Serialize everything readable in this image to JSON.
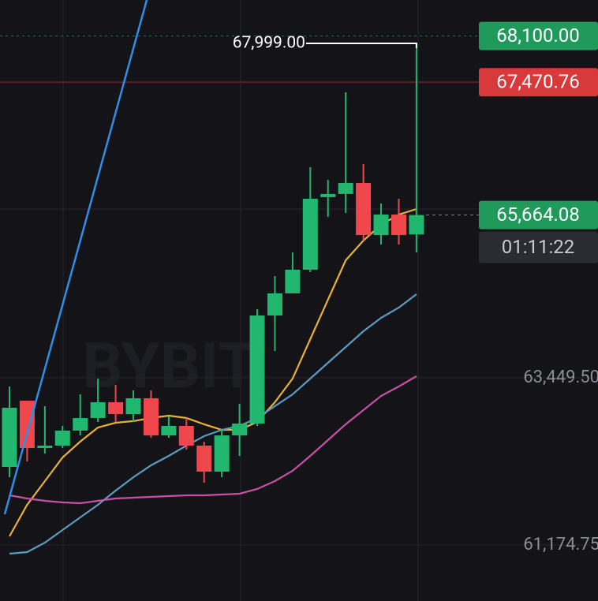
{
  "chart_data": {
    "type": "candlestick",
    "watermark": "BYBIT",
    "open": [
      62237,
      63138,
      62494,
      62527,
      62731,
      62902,
      63117,
      62956,
      63171,
      62666,
      62795,
      62527,
      62173,
      62666,
      62827,
      64297,
      64598,
      64920,
      65907,
      65950,
      66100,
      65391,
      65670,
      65400
    ],
    "high": [
      63331,
      63138,
      63063,
      62795,
      63224,
      63439,
      63353,
      63278,
      63278,
      62924,
      62902,
      62580,
      62741,
      63095,
      64383,
      64834,
      65155,
      66314,
      66143,
      67334,
      66357,
      65821,
      65885,
      67999
    ],
    "low": [
      62097,
      62312,
      62419,
      62494,
      62666,
      62849,
      62849,
      62849,
      62634,
      62634,
      62473,
      62022,
      62097,
      62387,
      62795,
      63814,
      64619,
      64887,
      65638,
      65692,
      65316,
      65262,
      65262,
      65155
    ],
    "close": [
      63042,
      62494,
      62527,
      62731,
      62902,
      63117,
      62956,
      63171,
      62666,
      62795,
      62527,
      62173,
      62666,
      62827,
      64297,
      64598,
      64920,
      65885,
      65950,
      66100,
      65391,
      65670,
      65391,
      65664.08
    ],
    "up_color": "#22b76f",
    "down_color": "#f0474c",
    "series": [
      {
        "color": "#e8b234",
        "values": [
          61293,
          61722,
          62044,
          62366,
          62581,
          62774,
          62838,
          62860,
          62902,
          62935,
          62902,
          62817,
          62741,
          62741,
          62849,
          63117,
          63439,
          63975,
          64512,
          65048,
          65316,
          65531,
          65670,
          65746
        ]
      },
      {
        "color": "#5b9bbf",
        "values": [
          61057,
          61078,
          61207,
          61379,
          61550,
          61722,
          61915,
          62097,
          62258,
          62387,
          62527,
          62655,
          62741,
          62795,
          62902,
          63063,
          63224,
          63439,
          63653,
          63868,
          64083,
          64265,
          64404,
          64587
        ]
      },
      {
        "color": "#c94fa6",
        "values": [
          61851,
          61808,
          61776,
          61754,
          61744,
          61776,
          61808,
          61819,
          61829,
          61840,
          61851,
          61851,
          61862,
          61872,
          61937,
          62044,
          62184,
          62387,
          62602,
          62817,
          63010,
          63203,
          63331,
          63471
        ]
      }
    ],
    "ylim": [
      60413,
      68589
    ],
    "yticks": [
      {
        "value": 63449.5,
        "label": "63,449.50"
      },
      {
        "value": 61174.75,
        "label": "61,174.75"
      }
    ],
    "grid": true,
    "annotation": {
      "value": 67999,
      "label": "67,999.00"
    },
    "price_tags": [
      {
        "value": 68100,
        "label": "68,100.00",
        "color": "#1f9a5a"
      },
      {
        "value": 67470.76,
        "label": "67,470.76",
        "color": "#d8393b"
      },
      {
        "value": 65664.08,
        "label": "65,664.08",
        "color": "#1f9a5a"
      }
    ],
    "countdown": "01:11:22"
  }
}
